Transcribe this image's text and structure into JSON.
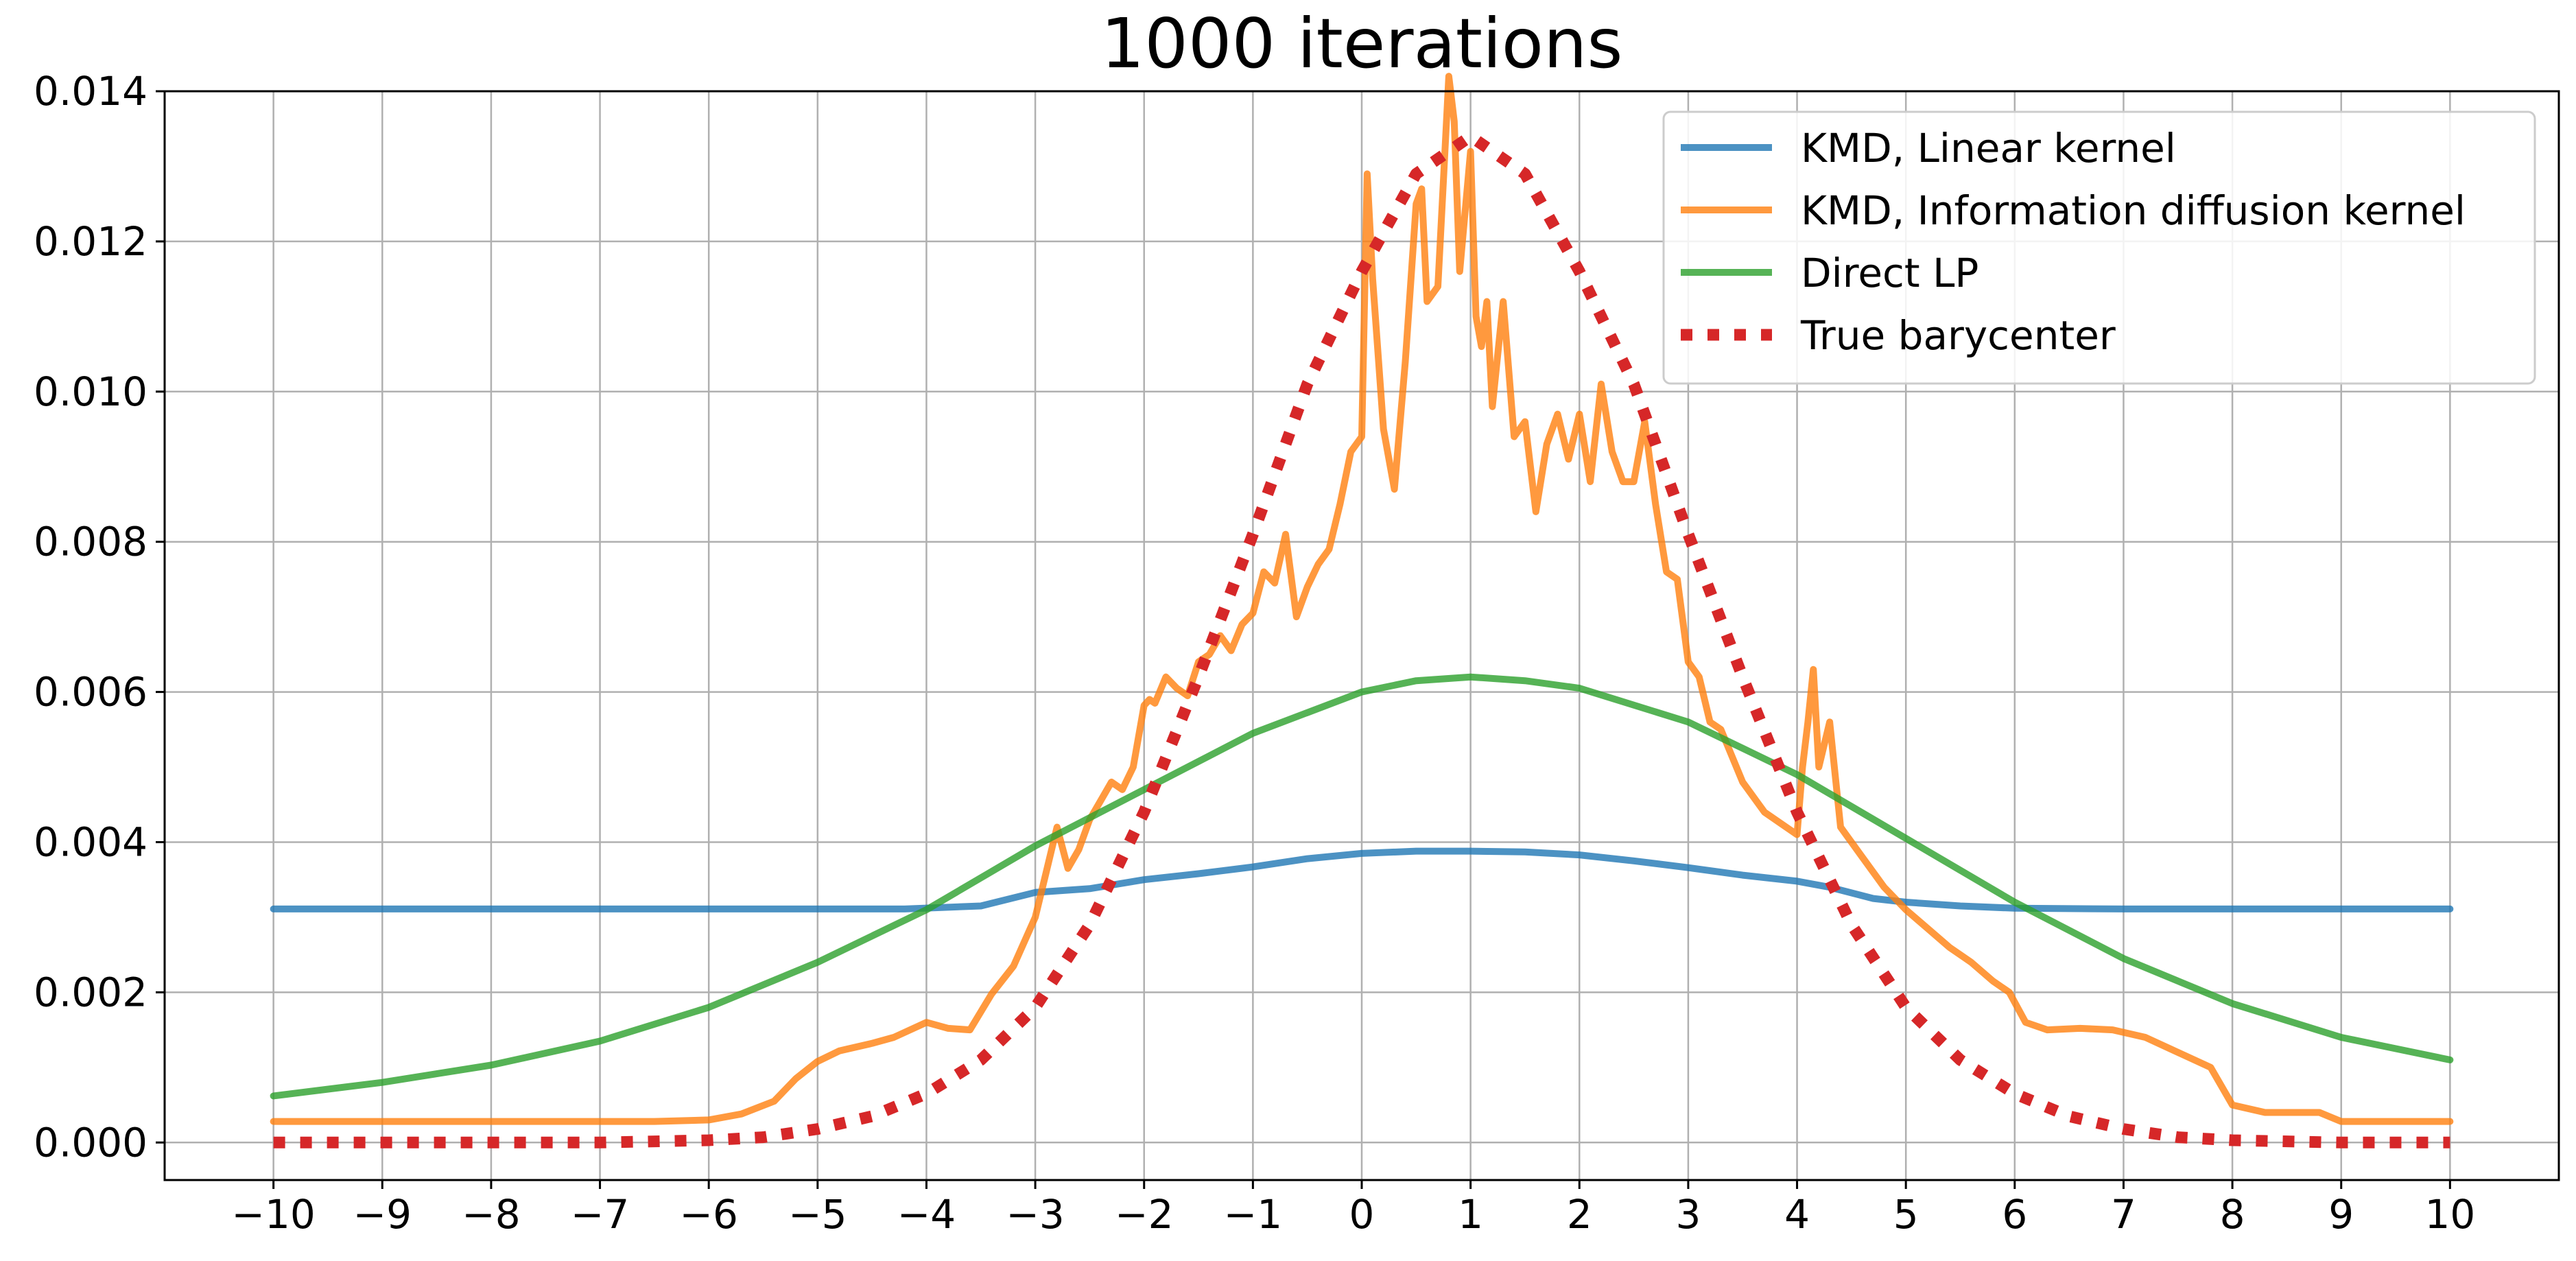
{
  "chart_data": {
    "type": "line",
    "title": "1000 iterations",
    "xlabel": "",
    "ylabel": "",
    "xlim": [
      -11,
      11
    ],
    "ylim": [
      -0.0005,
      0.014
    ],
    "xticks": [
      -10,
      -9,
      -8,
      -7,
      -6,
      -5,
      -4,
      -3,
      -2,
      -1,
      0,
      1,
      2,
      3,
      4,
      5,
      6,
      7,
      8,
      9,
      10
    ],
    "xtick_labels": [
      "−10",
      "−9",
      "−8",
      "−7",
      "−6",
      "−5",
      "−4",
      "−3",
      "−2",
      "−1",
      "0",
      "1",
      "2",
      "3",
      "4",
      "5",
      "6",
      "7",
      "8",
      "9",
      "10"
    ],
    "yticks": [
      0.0,
      0.002,
      0.004,
      0.006,
      0.008,
      0.01,
      0.012,
      0.014
    ],
    "ytick_labels": [
      "0.000",
      "0.002",
      "0.004",
      "0.006",
      "0.008",
      "0.010",
      "0.012",
      "0.014"
    ],
    "grid": true,
    "legend_position": "top-right",
    "series": [
      {
        "name": "KMD, Linear kernel",
        "color": "#1f77b4",
        "style": "solid",
        "x": [
          -10,
          -5,
          -4.2,
          -3.5,
          -3,
          -2.5,
          -2,
          -1.5,
          -1,
          -0.5,
          0,
          0.5,
          1,
          1.5,
          2,
          2.5,
          3,
          3.5,
          4,
          4.3,
          4.7,
          5,
          5.5,
          6,
          7,
          10
        ],
        "y": [
          0.00311,
          0.00311,
          0.00311,
          0.00315,
          0.00333,
          0.00338,
          0.0035,
          0.00358,
          0.00367,
          0.00378,
          0.00385,
          0.00388,
          0.00388,
          0.00387,
          0.00383,
          0.00375,
          0.00366,
          0.00356,
          0.00348,
          0.0034,
          0.00325,
          0.0032,
          0.00315,
          0.00312,
          0.00311,
          0.00311
        ]
      },
      {
        "name": "KMD, Information diffusion kernel",
        "color": "#ff7f0e",
        "style": "solid",
        "x": [
          -10,
          -6.5,
          -6,
          -5.7,
          -5.4,
          -5.2,
          -5.0,
          -4.8,
          -4.5,
          -4.3,
          -4.0,
          -3.8,
          -3.6,
          -3.4,
          -3.2,
          -3.0,
          -2.9,
          -2.8,
          -2.7,
          -2.6,
          -2.5,
          -2.4,
          -2.3,
          -2.2,
          -2.1,
          -2.0,
          -1.95,
          -1.9,
          -1.8,
          -1.7,
          -1.6,
          -1.5,
          -1.4,
          -1.3,
          -1.2,
          -1.1,
          -1.0,
          -0.9,
          -0.8,
          -0.7,
          -0.6,
          -0.5,
          -0.4,
          -0.3,
          -0.2,
          -0.1,
          0.0,
          0.05,
          0.1,
          0.15,
          0.2,
          0.3,
          0.4,
          0.5,
          0.55,
          0.6,
          0.7,
          0.75,
          0.8,
          0.85,
          0.9,
          1.0,
          1.05,
          1.1,
          1.15,
          1.2,
          1.3,
          1.4,
          1.5,
          1.6,
          1.7,
          1.8,
          1.9,
          2.0,
          2.1,
          2.2,
          2.3,
          2.4,
          2.5,
          2.6,
          2.7,
          2.8,
          2.9,
          3.0,
          3.1,
          3.2,
          3.3,
          3.5,
          3.7,
          3.9,
          4.0,
          4.05,
          4.1,
          4.15,
          4.2,
          4.3,
          4.4,
          4.5,
          4.6,
          4.8,
          5.0,
          5.2,
          5.4,
          5.6,
          5.8,
          5.95,
          6.1,
          6.3,
          6.6,
          6.9,
          7.2,
          7.5,
          7.8,
          8.0,
          8.3,
          8.6,
          8.8,
          9.0,
          9.3,
          10.0
        ],
        "y": [
          0.00028,
          0.00028,
          0.0003,
          0.00038,
          0.00055,
          0.00085,
          0.00108,
          0.00122,
          0.00132,
          0.0014,
          0.0016,
          0.00152,
          0.0015,
          0.00198,
          0.00235,
          0.003,
          0.0036,
          0.0042,
          0.00365,
          0.0039,
          0.0043,
          0.00455,
          0.0048,
          0.0047,
          0.005,
          0.00582,
          0.0059,
          0.00585,
          0.0062,
          0.00605,
          0.00595,
          0.0064,
          0.0065,
          0.00675,
          0.00655,
          0.0069,
          0.00705,
          0.0076,
          0.00745,
          0.0081,
          0.007,
          0.0074,
          0.0077,
          0.0079,
          0.0085,
          0.0092,
          0.0094,
          0.0129,
          0.0115,
          0.0105,
          0.0095,
          0.0087,
          0.0104,
          0.0125,
          0.0127,
          0.0112,
          0.0114,
          0.0128,
          0.0142,
          0.0136,
          0.0116,
          0.0132,
          0.011,
          0.0106,
          0.0112,
          0.0098,
          0.0112,
          0.0094,
          0.0096,
          0.0084,
          0.0093,
          0.0097,
          0.0091,
          0.0097,
          0.0088,
          0.0101,
          0.0092,
          0.0088,
          0.0088,
          0.0096,
          0.0085,
          0.0076,
          0.0075,
          0.0064,
          0.0062,
          0.0056,
          0.0055,
          0.0048,
          0.0044,
          0.0042,
          0.0041,
          0.005,
          0.0056,
          0.0063,
          0.005,
          0.0056,
          0.0042,
          0.004,
          0.0038,
          0.0034,
          0.0031,
          0.00285,
          0.0026,
          0.0024,
          0.00215,
          0.002,
          0.0016,
          0.0015,
          0.00152,
          0.0015,
          0.0014,
          0.0012,
          0.001,
          0.0005,
          0.0004,
          0.0004,
          0.0004,
          0.00028,
          0.00028,
          0.00028
        ]
      },
      {
        "name": "Direct LP",
        "color": "#2ca02c",
        "style": "solid",
        "x": [
          -10,
          -9,
          -8,
          -7,
          -6,
          -5,
          -4,
          -3,
          -2,
          -1,
          0,
          0.5,
          1,
          1.5,
          2,
          3,
          4,
          5,
          6,
          7,
          8,
          9,
          10
        ],
        "y": [
          0.00062,
          0.0008,
          0.00103,
          0.00135,
          0.0018,
          0.0024,
          0.0031,
          0.00395,
          0.0047,
          0.00545,
          0.006,
          0.00615,
          0.0062,
          0.00615,
          0.00605,
          0.0056,
          0.0049,
          0.00405,
          0.0032,
          0.00245,
          0.00185,
          0.0014,
          0.0011
        ]
      },
      {
        "name": "True barycenter",
        "color": "#d62728",
        "style": "dotted",
        "x": [
          -10,
          -9,
          -8,
          -7,
          -6,
          -5.5,
          -5,
          -4.5,
          -4,
          -3.5,
          -3,
          -2.5,
          -2,
          -1.5,
          -1,
          -0.5,
          0,
          0.5,
          1,
          1.5,
          2,
          2.5,
          3,
          3.5,
          4,
          4.5,
          5,
          5.5,
          6,
          6.5,
          7,
          7.5,
          8,
          9,
          10
        ],
        "y": [
          0.0,
          0.0,
          0.0,
          0.0,
          3e-05,
          7e-05,
          0.00018,
          0.00035,
          0.00065,
          0.0011,
          0.0018,
          0.0029,
          0.0044,
          0.0062,
          0.0081,
          0.0101,
          0.0116,
          0.0129,
          0.0134,
          0.0129,
          0.0116,
          0.0101,
          0.0081,
          0.0062,
          0.0044,
          0.0029,
          0.0018,
          0.0011,
          0.00065,
          0.00035,
          0.00018,
          7e-05,
          3e-05,
          0.0,
          0.0
        ]
      }
    ]
  }
}
